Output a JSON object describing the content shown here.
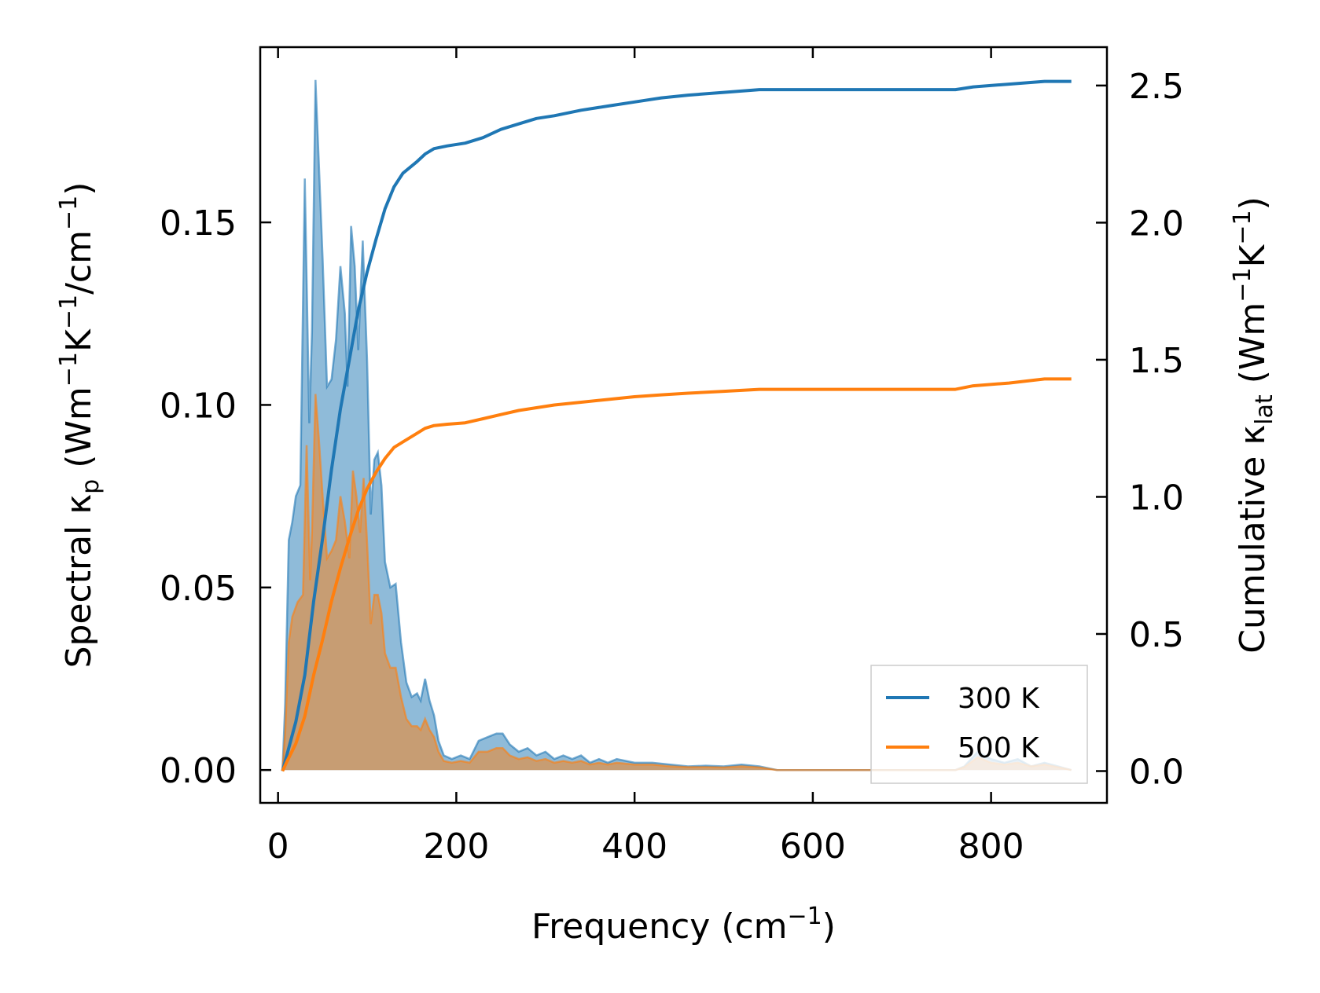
{
  "chart_data": {
    "type": "line",
    "xlabel": "Frequency (cm⁻¹)",
    "ylabel_left": "Spectral κₚ (Wm⁻¹K⁻¹/cm⁻¹)",
    "ylabel_right": "Cumulative κₗₐₜ (Wm⁻¹K⁻¹)",
    "xlim": [
      -20,
      930
    ],
    "ylim_left": [
      -0.009,
      0.198
    ],
    "ylim_right": [
      -0.116,
      2.64
    ],
    "x_ticks": [
      0,
      200,
      400,
      600,
      800
    ],
    "y_ticks_left": [
      0.0,
      0.05,
      0.1,
      0.15
    ],
    "y_ticks_left_labels": [
      "0.00",
      "0.05",
      "0.10",
      "0.15"
    ],
    "y_ticks_right": [
      0.0,
      0.5,
      1.0,
      1.5,
      2.0,
      2.5
    ],
    "y_ticks_right_labels": [
      "0.0",
      "0.5",
      "1.0",
      "1.5",
      "2.0",
      "2.5"
    ],
    "legend_position": "lower-right",
    "series": [
      {
        "name": "300 K",
        "color": "#1f77b4",
        "spectral": [
          [
            5,
            0
          ],
          [
            8,
            0.018
          ],
          [
            12,
            0.063
          ],
          [
            16,
            0.068
          ],
          [
            20,
            0.075
          ],
          [
            25,
            0.078
          ],
          [
            30,
            0.162
          ],
          [
            35,
            0.095
          ],
          [
            38,
            0.12
          ],
          [
            42,
            0.189
          ],
          [
            46,
            0.165
          ],
          [
            50,
            0.14
          ],
          [
            55,
            0.105
          ],
          [
            60,
            0.107
          ],
          [
            65,
            0.118
          ],
          [
            70,
            0.138
          ],
          [
            75,
            0.125
          ],
          [
            78,
            0.105
          ],
          [
            82,
            0.149
          ],
          [
            86,
            0.138
          ],
          [
            90,
            0.115
          ],
          [
            95,
            0.145
          ],
          [
            100,
            0.112
          ],
          [
            104,
            0.07
          ],
          [
            108,
            0.085
          ],
          [
            112,
            0.087
          ],
          [
            116,
            0.078
          ],
          [
            120,
            0.057
          ],
          [
            126,
            0.05
          ],
          [
            132,
            0.051
          ],
          [
            138,
            0.035
          ],
          [
            144,
            0.024
          ],
          [
            150,
            0.02
          ],
          [
            156,
            0.021
          ],
          [
            160,
            0.019
          ],
          [
            165,
            0.025
          ],
          [
            170,
            0.019
          ],
          [
            175,
            0.015
          ],
          [
            180,
            0.008
          ],
          [
            186,
            0.004
          ],
          [
            195,
            0.003
          ],
          [
            205,
            0.004
          ],
          [
            215,
            0.003
          ],
          [
            225,
            0.008
          ],
          [
            235,
            0.009
          ],
          [
            245,
            0.01
          ],
          [
            252,
            0.01
          ],
          [
            260,
            0.007
          ],
          [
            270,
            0.005
          ],
          [
            280,
            0.006
          ],
          [
            290,
            0.004
          ],
          [
            300,
            0.005
          ],
          [
            310,
            0.003
          ],
          [
            320,
            0.004
          ],
          [
            330,
            0.003
          ],
          [
            340,
            0.004
          ],
          [
            350,
            0.002
          ],
          [
            360,
            0.003
          ],
          [
            370,
            0.002
          ],
          [
            380,
            0.003
          ],
          [
            400,
            0.002
          ],
          [
            420,
            0.002
          ],
          [
            440,
            0.0015
          ],
          [
            460,
            0.001
          ],
          [
            480,
            0.0012
          ],
          [
            500,
            0.001
          ],
          [
            520,
            0.0015
          ],
          [
            540,
            0.001
          ],
          [
            560,
            0
          ],
          [
            760,
            0
          ],
          [
            770,
            0.001
          ],
          [
            785,
            0.005
          ],
          [
            800,
            0.003
          ],
          [
            815,
            0.002
          ],
          [
            830,
            0.003
          ],
          [
            845,
            0.001
          ],
          [
            860,
            0.002
          ],
          [
            875,
            0.001
          ],
          [
            890,
            0
          ]
        ],
        "cumulative": [
          [
            5,
            0
          ],
          [
            10,
            0.06
          ],
          [
            20,
            0.18
          ],
          [
            30,
            0.35
          ],
          [
            40,
            0.62
          ],
          [
            50,
            0.85
          ],
          [
            60,
            1.1
          ],
          [
            70,
            1.32
          ],
          [
            80,
            1.5
          ],
          [
            90,
            1.68
          ],
          [
            100,
            1.82
          ],
          [
            110,
            1.94
          ],
          [
            120,
            2.05
          ],
          [
            130,
            2.13
          ],
          [
            140,
            2.18
          ],
          [
            155,
            2.22
          ],
          [
            165,
            2.25
          ],
          [
            175,
            2.27
          ],
          [
            190,
            2.28
          ],
          [
            210,
            2.29
          ],
          [
            230,
            2.31
          ],
          [
            250,
            2.34
          ],
          [
            270,
            2.36
          ],
          [
            290,
            2.38
          ],
          [
            310,
            2.39
          ],
          [
            340,
            2.41
          ],
          [
            370,
            2.425
          ],
          [
            400,
            2.44
          ],
          [
            430,
            2.455
          ],
          [
            460,
            2.465
          ],
          [
            500,
            2.475
          ],
          [
            540,
            2.485
          ],
          [
            600,
            2.485
          ],
          [
            700,
            2.485
          ],
          [
            760,
            2.485
          ],
          [
            780,
            2.495
          ],
          [
            820,
            2.505
          ],
          [
            860,
            2.515
          ],
          [
            890,
            2.515
          ]
        ]
      },
      {
        "name": "500 K",
        "color": "#ff7f0e",
        "spectral": [
          [
            5,
            0
          ],
          [
            8,
            0.01
          ],
          [
            12,
            0.035
          ],
          [
            16,
            0.042
          ],
          [
            22,
            0.046
          ],
          [
            28,
            0.048
          ],
          [
            32,
            0.089
          ],
          [
            36,
            0.052
          ],
          [
            38,
            0.065
          ],
          [
            42,
            0.103
          ],
          [
            46,
            0.09
          ],
          [
            50,
            0.075
          ],
          [
            55,
            0.058
          ],
          [
            60,
            0.06
          ],
          [
            65,
            0.063
          ],
          [
            70,
            0.075
          ],
          [
            75,
            0.068
          ],
          [
            80,
            0.058
          ],
          [
            84,
            0.082
          ],
          [
            88,
            0.075
          ],
          [
            92,
            0.065
          ],
          [
            96,
            0.08
          ],
          [
            100,
            0.062
          ],
          [
            104,
            0.04
          ],
          [
            108,
            0.048
          ],
          [
            112,
            0.048
          ],
          [
            116,
            0.043
          ],
          [
            120,
            0.032
          ],
          [
            126,
            0.028
          ],
          [
            132,
            0.028
          ],
          [
            138,
            0.02
          ],
          [
            144,
            0.014
          ],
          [
            150,
            0.012
          ],
          [
            156,
            0.012
          ],
          [
            160,
            0.011
          ],
          [
            165,
            0.014
          ],
          [
            170,
            0.011
          ],
          [
            175,
            0.009
          ],
          [
            180,
            0.005
          ],
          [
            186,
            0.0025
          ],
          [
            195,
            0.002
          ],
          [
            205,
            0.0025
          ],
          [
            215,
            0.002
          ],
          [
            225,
            0.005
          ],
          [
            235,
            0.005
          ],
          [
            245,
            0.006
          ],
          [
            252,
            0.006
          ],
          [
            260,
            0.004
          ],
          [
            270,
            0.003
          ],
          [
            280,
            0.0035
          ],
          [
            290,
            0.0025
          ],
          [
            300,
            0.003
          ],
          [
            310,
            0.002
          ],
          [
            320,
            0.0025
          ],
          [
            330,
            0.002
          ],
          [
            340,
            0.0025
          ],
          [
            350,
            0.0015
          ],
          [
            360,
            0.002
          ],
          [
            370,
            0.0015
          ],
          [
            380,
            0.002
          ],
          [
            400,
            0.0015
          ],
          [
            420,
            0.0015
          ],
          [
            440,
            0.001
          ],
          [
            460,
            0.0008
          ],
          [
            480,
            0.0008
          ],
          [
            500,
            0.0007
          ],
          [
            520,
            0.001
          ],
          [
            540,
            0.0007
          ],
          [
            560,
            0
          ],
          [
            760,
            0
          ],
          [
            770,
            0.0008
          ],
          [
            785,
            0.0035
          ],
          [
            800,
            0.002
          ],
          [
            815,
            0.0015
          ],
          [
            830,
            0.002
          ],
          [
            845,
            0.001
          ],
          [
            860,
            0.0015
          ],
          [
            875,
            0.0008
          ],
          [
            890,
            0
          ]
        ],
        "cumulative": [
          [
            5,
            0
          ],
          [
            10,
            0.035
          ],
          [
            20,
            0.1
          ],
          [
            30,
            0.2
          ],
          [
            40,
            0.35
          ],
          [
            50,
            0.48
          ],
          [
            60,
            0.62
          ],
          [
            70,
            0.74
          ],
          [
            80,
            0.85
          ],
          [
            90,
            0.95
          ],
          [
            100,
            1.03
          ],
          [
            110,
            1.09
          ],
          [
            120,
            1.14
          ],
          [
            130,
            1.18
          ],
          [
            140,
            1.2
          ],
          [
            155,
            1.23
          ],
          [
            165,
            1.25
          ],
          [
            175,
            1.26
          ],
          [
            190,
            1.265
          ],
          [
            210,
            1.27
          ],
          [
            230,
            1.285
          ],
          [
            250,
            1.3
          ],
          [
            270,
            1.315
          ],
          [
            290,
            1.325
          ],
          [
            310,
            1.335
          ],
          [
            340,
            1.345
          ],
          [
            370,
            1.355
          ],
          [
            400,
            1.365
          ],
          [
            430,
            1.372
          ],
          [
            460,
            1.378
          ],
          [
            500,
            1.385
          ],
          [
            540,
            1.392
          ],
          [
            600,
            1.392
          ],
          [
            700,
            1.392
          ],
          [
            760,
            1.392
          ],
          [
            780,
            1.405
          ],
          [
            820,
            1.415
          ],
          [
            860,
            1.43
          ],
          [
            890,
            1.43
          ]
        ]
      }
    ]
  }
}
